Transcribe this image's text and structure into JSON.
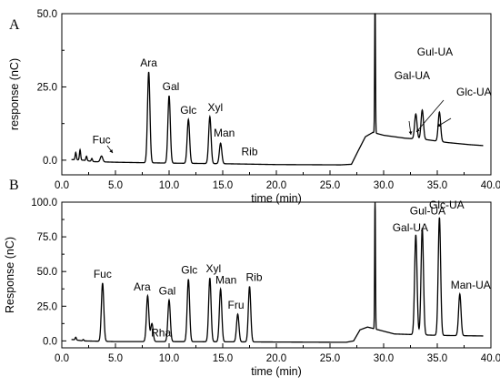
{
  "chart_data": [
    {
      "type": "line",
      "panel_label": "A",
      "xlabel": "time (min)",
      "ylabel": "response (nC)",
      "xlim": [
        0,
        40
      ],
      "ylim": [
        -5,
        50
      ],
      "xticks": [
        "0.0",
        "5.0",
        "10.0",
        "15.0",
        "20.0",
        "25.0",
        "30.0",
        "35.0",
        "40.0"
      ],
      "yticks": [
        "0.0",
        "25.0",
        "50.0"
      ],
      "baseline": [
        [
          0.0,
          0.0
        ],
        [
          1.0,
          0.2
        ],
        [
          2.0,
          0.0
        ],
        [
          3.0,
          -0.5
        ],
        [
          5.0,
          -0.7
        ],
        [
          10.0,
          -1.0
        ],
        [
          15.0,
          -1.2
        ],
        [
          20.0,
          -1.5
        ],
        [
          26.0,
          -1.6
        ],
        [
          27.0,
          -1.4
        ],
        [
          27.6,
          3.0
        ],
        [
          28.3,
          8.0
        ],
        [
          29.0,
          9.5
        ],
        [
          30.0,
          8.5
        ],
        [
          32.0,
          7.5
        ],
        [
          34.0,
          7.0
        ],
        [
          36.0,
          6.0
        ],
        [
          38.0,
          5.3
        ],
        [
          40.0,
          4.8
        ]
      ],
      "peaks": [
        {
          "name": "Fuc",
          "x": 3.7,
          "y": 2.0
        },
        {
          "name": "Ara",
          "x": 8.1,
          "y": 31.0
        },
        {
          "name": "Gal",
          "x": 10.0,
          "y": 23.0
        },
        {
          "name": "Glc",
          "x": 11.8,
          "y": 15.0
        },
        {
          "name": "Xyl",
          "x": 13.8,
          "y": 16.0
        },
        {
          "name": "Man",
          "x": 14.8,
          "y": 7.0
        },
        {
          "name": "Rib",
          "x": 17.5,
          "y": 0.0
        },
        {
          "name": "",
          "x": 29.2,
          "y": 50.0
        },
        {
          "name": "Gal-UA",
          "x": 33.0,
          "y": 8.5
        },
        {
          "name": "Gul-UA",
          "x": 33.6,
          "y": 10.0
        },
        {
          "name": "Glc-UA",
          "x": 35.2,
          "y": 10.0
        }
      ],
      "noise_peaks": [
        {
          "x": 1.3,
          "y": 2.5
        },
        {
          "x": 1.7,
          "y": 3.5
        },
        {
          "x": 2.3,
          "y": 1.5
        },
        {
          "x": 2.8,
          "y": 1.0
        }
      ]
    },
    {
      "type": "line",
      "panel_label": "B",
      "xlabel": "time (min)",
      "ylabel": "Response (nC)",
      "xlim": [
        0,
        40
      ],
      "ylim": [
        -5,
        100
      ],
      "xticks": [
        "0.0",
        "5.0",
        "10.0",
        "15.0",
        "20.0",
        "25.0",
        "30.0",
        "35.0",
        "40.0"
      ],
      "yticks": [
        "0.0",
        "25.0",
        "50.0",
        "75.0",
        "100.0"
      ],
      "baseline": [
        [
          0.0,
          0.0
        ],
        [
          1.0,
          1.0
        ],
        [
          2.0,
          0.0
        ],
        [
          5.0,
          -0.5
        ],
        [
          10.0,
          -0.5
        ],
        [
          20.0,
          -0.8
        ],
        [
          26.5,
          -1.0
        ],
        [
          27.2,
          0.0
        ],
        [
          27.8,
          8.0
        ],
        [
          28.5,
          10.0
        ],
        [
          29.5,
          8.0
        ],
        [
          31.0,
          5.0
        ],
        [
          35.0,
          4.0
        ],
        [
          40.0,
          3.5
        ]
      ],
      "peaks": [
        {
          "name": "Fuc",
          "x": 3.8,
          "y": 42.0
        },
        {
          "name": "Ara",
          "x": 8.0,
          "y": 33.0
        },
        {
          "name": "Rha",
          "x": 8.4,
          "y": 13.0
        },
        {
          "name": "Gal",
          "x": 10.0,
          "y": 30.0
        },
        {
          "name": "Glc",
          "x": 11.8,
          "y": 45.0
        },
        {
          "name": "Xyl",
          "x": 13.8,
          "y": 46.0
        },
        {
          "name": "Man",
          "x": 14.8,
          "y": 38.0
        },
        {
          "name": "Fru",
          "x": 16.4,
          "y": 20.0
        },
        {
          "name": "Rib",
          "x": 17.5,
          "y": 40.0
        },
        {
          "name": "",
          "x": 29.2,
          "y": 100.0
        },
        {
          "name": "Gal-UA",
          "x": 33.0,
          "y": 72.0
        },
        {
          "name": "Gul-UA",
          "x": 33.6,
          "y": 77.0
        },
        {
          "name": "Glc-UA",
          "x": 35.2,
          "y": 85.0
        },
        {
          "name": "Man-UA",
          "x": 37.1,
          "y": 30.0
        }
      ],
      "noise_peaks": [
        {
          "x": 1.3,
          "y": 2.0
        },
        {
          "x": 2.0,
          "y": 1.0
        }
      ]
    }
  ]
}
